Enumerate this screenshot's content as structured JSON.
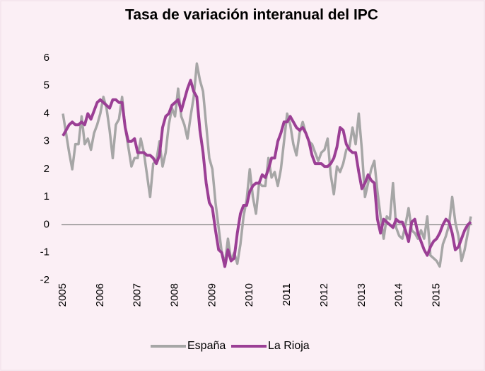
{
  "chart_data": {
    "type": "line",
    "title": "Tasa de variación interanual del IPC",
    "categories": [
      "2005",
      null,
      null,
      null,
      null,
      null,
      null,
      null,
      null,
      null,
      null,
      null,
      "2006",
      null,
      null,
      null,
      null,
      null,
      null,
      null,
      null,
      null,
      null,
      null,
      "2007",
      null,
      null,
      null,
      null,
      null,
      null,
      null,
      null,
      null,
      null,
      null,
      "2008",
      null,
      null,
      null,
      null,
      null,
      null,
      null,
      null,
      null,
      null,
      null,
      "2009",
      null,
      null,
      null,
      null,
      null,
      null,
      null,
      null,
      null,
      null,
      null,
      "2010",
      null,
      null,
      null,
      null,
      null,
      null,
      null,
      null,
      null,
      null,
      null,
      "2011",
      null,
      null,
      null,
      null,
      null,
      null,
      null,
      null,
      null,
      null,
      null,
      "2012",
      null,
      null,
      null,
      null,
      null,
      null,
      null,
      null,
      null,
      null,
      null,
      "2013",
      null,
      null,
      null,
      null,
      null,
      null,
      null,
      null,
      null,
      null,
      null,
      "2014",
      null,
      null,
      null,
      null,
      null,
      null,
      null,
      null,
      null,
      null,
      null,
      "2015",
      null,
      null,
      null,
      null,
      null,
      null,
      null,
      null,
      null,
      null,
      null
    ],
    "series": [
      {
        "name": "España",
        "color": "#a6a6a6",
        "values": [
          4.0,
          3.3,
          2.6,
          2.0,
          2.9,
          2.9,
          3.9,
          2.9,
          3.1,
          2.7,
          3.3,
          3.6,
          4.0,
          4.6,
          4.2,
          3.4,
          2.4,
          3.6,
          3.8,
          4.6,
          3.5,
          2.8,
          2.1,
          2.4,
          2.4,
          3.1,
          2.6,
          1.8,
          1.0,
          2.2,
          2.3,
          3.0,
          2.1,
          2.6,
          3.6,
          4.2,
          3.9,
          4.9,
          3.9,
          3.6,
          3.1,
          3.9,
          4.6,
          5.8,
          5.2,
          4.8,
          3.6,
          2.4,
          2.0,
          0.8,
          -0.1,
          -1.0,
          -1.4,
          -0.5,
          -1.3,
          -1.0,
          -1.4,
          -0.7,
          0.3,
          0.9,
          2.0,
          1.0,
          0.4,
          1.5,
          1.4,
          1.4,
          2.4,
          1.7,
          1.9,
          1.4,
          2.0,
          3.0,
          4.0,
          3.6,
          2.9,
          2.5,
          3.3,
          3.7,
          3.3,
          3.0,
          2.9,
          2.6,
          2.3,
          2.6,
          2.7,
          3.1,
          1.8,
          1.1,
          2.1,
          1.9,
          2.2,
          2.7,
          2.8,
          3.5,
          2.9,
          4.0,
          2.7,
          1.0,
          1.5,
          2.0,
          2.3,
          1.2,
          0.3,
          -0.5,
          0.3,
          0.2,
          1.5,
          -0.1,
          -0.4,
          -0.5,
          0.0,
          0.6,
          -0.2,
          -0.3,
          -0.5,
          -0.2,
          -0.5,
          0.3,
          -1.1,
          -1.2,
          -1.3,
          -1.5,
          -0.7,
          -0.4,
          0.0,
          1.0,
          0.1,
          -0.4,
          -1.3,
          -0.9,
          -0.3,
          0.3
        ]
      },
      {
        "name": "La Rioja",
        "color": "#9b3f95",
        "values": [
          3.2,
          3.4,
          3.6,
          3.7,
          3.6,
          3.6,
          3.7,
          3.6,
          4.0,
          3.8,
          4.1,
          4.4,
          4.5,
          4.4,
          4.3,
          4.2,
          4.5,
          4.5,
          4.4,
          4.4,
          3.5,
          3.0,
          3.0,
          3.1,
          2.6,
          2.6,
          2.6,
          2.5,
          2.5,
          2.4,
          2.2,
          2.5,
          3.5,
          3.9,
          4.0,
          4.3,
          4.4,
          4.5,
          4.1,
          4.5,
          4.9,
          5.2,
          4.8,
          4.6,
          3.4,
          2.6,
          1.5,
          0.8,
          0.6,
          -0.2,
          -0.9,
          -1.0,
          -1.5,
          -0.9,
          -1.3,
          -1.2,
          -0.3,
          0.4,
          0.7,
          0.7,
          1.2,
          1.4,
          1.5,
          1.5,
          1.8,
          1.7,
          2.0,
          2.4,
          2.4,
          3.0,
          3.3,
          3.7,
          3.7,
          3.9,
          3.7,
          3.5,
          3.4,
          3.5,
          3.3,
          3.0,
          2.5,
          2.2,
          2.2,
          2.2,
          2.1,
          2.1,
          2.2,
          2.4,
          2.8,
          3.5,
          3.4,
          2.9,
          2.7,
          2.6,
          2.6,
          1.9,
          1.3,
          1.5,
          1.8,
          1.6,
          1.5,
          0.2,
          -0.3,
          0.2,
          0.1,
          0.0,
          -0.1,
          0.2,
          0.1,
          0.1,
          -0.2,
          -0.6,
          0.1,
          0.2,
          -0.3,
          -0.6,
          -0.9,
          -1.1,
          -0.8,
          -0.6,
          -0.5,
          -0.3,
          0.0,
          0.2,
          0.1,
          -0.3,
          -0.9,
          -0.8,
          -0.5,
          -0.2,
          0.0,
          0.1
        ]
      }
    ],
    "ylim": [
      -2,
      6
    ],
    "yticks": [
      -2,
      -1,
      0,
      1,
      2,
      3,
      4,
      5,
      6
    ],
    "legend": "bottom"
  }
}
